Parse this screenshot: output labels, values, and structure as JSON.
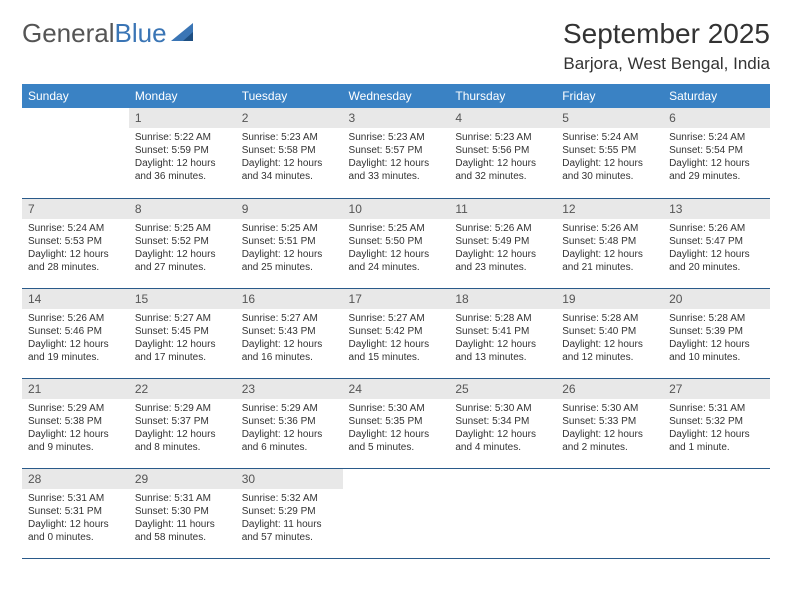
{
  "logo": {
    "text_part1": "General",
    "text_part2": "Blue"
  },
  "header": {
    "month_title": "September 2025",
    "location": "Barjora, West Bengal, India"
  },
  "colors": {
    "header_bg": "#3a82c4",
    "header_text": "#ffffff",
    "daynum_bg": "#e8e8e8",
    "row_border": "#2a5a8a",
    "logo_gray": "#555555",
    "logo_blue": "#3a75b5"
  },
  "weekdays": [
    "Sunday",
    "Monday",
    "Tuesday",
    "Wednesday",
    "Thursday",
    "Friday",
    "Saturday"
  ],
  "weeks": [
    [
      {
        "empty": true
      },
      {
        "day": "1",
        "sunrise": "Sunrise: 5:22 AM",
        "sunset": "Sunset: 5:59 PM",
        "daylight1": "Daylight: 12 hours",
        "daylight2": "and 36 minutes."
      },
      {
        "day": "2",
        "sunrise": "Sunrise: 5:23 AM",
        "sunset": "Sunset: 5:58 PM",
        "daylight1": "Daylight: 12 hours",
        "daylight2": "and 34 minutes."
      },
      {
        "day": "3",
        "sunrise": "Sunrise: 5:23 AM",
        "sunset": "Sunset: 5:57 PM",
        "daylight1": "Daylight: 12 hours",
        "daylight2": "and 33 minutes."
      },
      {
        "day": "4",
        "sunrise": "Sunrise: 5:23 AM",
        "sunset": "Sunset: 5:56 PM",
        "daylight1": "Daylight: 12 hours",
        "daylight2": "and 32 minutes."
      },
      {
        "day": "5",
        "sunrise": "Sunrise: 5:24 AM",
        "sunset": "Sunset: 5:55 PM",
        "daylight1": "Daylight: 12 hours",
        "daylight2": "and 30 minutes."
      },
      {
        "day": "6",
        "sunrise": "Sunrise: 5:24 AM",
        "sunset": "Sunset: 5:54 PM",
        "daylight1": "Daylight: 12 hours",
        "daylight2": "and 29 minutes."
      }
    ],
    [
      {
        "day": "7",
        "sunrise": "Sunrise: 5:24 AM",
        "sunset": "Sunset: 5:53 PM",
        "daylight1": "Daylight: 12 hours",
        "daylight2": "and 28 minutes."
      },
      {
        "day": "8",
        "sunrise": "Sunrise: 5:25 AM",
        "sunset": "Sunset: 5:52 PM",
        "daylight1": "Daylight: 12 hours",
        "daylight2": "and 27 minutes."
      },
      {
        "day": "9",
        "sunrise": "Sunrise: 5:25 AM",
        "sunset": "Sunset: 5:51 PM",
        "daylight1": "Daylight: 12 hours",
        "daylight2": "and 25 minutes."
      },
      {
        "day": "10",
        "sunrise": "Sunrise: 5:25 AM",
        "sunset": "Sunset: 5:50 PM",
        "daylight1": "Daylight: 12 hours",
        "daylight2": "and 24 minutes."
      },
      {
        "day": "11",
        "sunrise": "Sunrise: 5:26 AM",
        "sunset": "Sunset: 5:49 PM",
        "daylight1": "Daylight: 12 hours",
        "daylight2": "and 23 minutes."
      },
      {
        "day": "12",
        "sunrise": "Sunrise: 5:26 AM",
        "sunset": "Sunset: 5:48 PM",
        "daylight1": "Daylight: 12 hours",
        "daylight2": "and 21 minutes."
      },
      {
        "day": "13",
        "sunrise": "Sunrise: 5:26 AM",
        "sunset": "Sunset: 5:47 PM",
        "daylight1": "Daylight: 12 hours",
        "daylight2": "and 20 minutes."
      }
    ],
    [
      {
        "day": "14",
        "sunrise": "Sunrise: 5:26 AM",
        "sunset": "Sunset: 5:46 PM",
        "daylight1": "Daylight: 12 hours",
        "daylight2": "and 19 minutes."
      },
      {
        "day": "15",
        "sunrise": "Sunrise: 5:27 AM",
        "sunset": "Sunset: 5:45 PM",
        "daylight1": "Daylight: 12 hours",
        "daylight2": "and 17 minutes."
      },
      {
        "day": "16",
        "sunrise": "Sunrise: 5:27 AM",
        "sunset": "Sunset: 5:43 PM",
        "daylight1": "Daylight: 12 hours",
        "daylight2": "and 16 minutes."
      },
      {
        "day": "17",
        "sunrise": "Sunrise: 5:27 AM",
        "sunset": "Sunset: 5:42 PM",
        "daylight1": "Daylight: 12 hours",
        "daylight2": "and 15 minutes."
      },
      {
        "day": "18",
        "sunrise": "Sunrise: 5:28 AM",
        "sunset": "Sunset: 5:41 PM",
        "daylight1": "Daylight: 12 hours",
        "daylight2": "and 13 minutes."
      },
      {
        "day": "19",
        "sunrise": "Sunrise: 5:28 AM",
        "sunset": "Sunset: 5:40 PM",
        "daylight1": "Daylight: 12 hours",
        "daylight2": "and 12 minutes."
      },
      {
        "day": "20",
        "sunrise": "Sunrise: 5:28 AM",
        "sunset": "Sunset: 5:39 PM",
        "daylight1": "Daylight: 12 hours",
        "daylight2": "and 10 minutes."
      }
    ],
    [
      {
        "day": "21",
        "sunrise": "Sunrise: 5:29 AM",
        "sunset": "Sunset: 5:38 PM",
        "daylight1": "Daylight: 12 hours",
        "daylight2": "and 9 minutes."
      },
      {
        "day": "22",
        "sunrise": "Sunrise: 5:29 AM",
        "sunset": "Sunset: 5:37 PM",
        "daylight1": "Daylight: 12 hours",
        "daylight2": "and 8 minutes."
      },
      {
        "day": "23",
        "sunrise": "Sunrise: 5:29 AM",
        "sunset": "Sunset: 5:36 PM",
        "daylight1": "Daylight: 12 hours",
        "daylight2": "and 6 minutes."
      },
      {
        "day": "24",
        "sunrise": "Sunrise: 5:30 AM",
        "sunset": "Sunset: 5:35 PM",
        "daylight1": "Daylight: 12 hours",
        "daylight2": "and 5 minutes."
      },
      {
        "day": "25",
        "sunrise": "Sunrise: 5:30 AM",
        "sunset": "Sunset: 5:34 PM",
        "daylight1": "Daylight: 12 hours",
        "daylight2": "and 4 minutes."
      },
      {
        "day": "26",
        "sunrise": "Sunrise: 5:30 AM",
        "sunset": "Sunset: 5:33 PM",
        "daylight1": "Daylight: 12 hours",
        "daylight2": "and 2 minutes."
      },
      {
        "day": "27",
        "sunrise": "Sunrise: 5:31 AM",
        "sunset": "Sunset: 5:32 PM",
        "daylight1": "Daylight: 12 hours",
        "daylight2": "and 1 minute."
      }
    ],
    [
      {
        "day": "28",
        "sunrise": "Sunrise: 5:31 AM",
        "sunset": "Sunset: 5:31 PM",
        "daylight1": "Daylight: 12 hours",
        "daylight2": "and 0 minutes."
      },
      {
        "day": "29",
        "sunrise": "Sunrise: 5:31 AM",
        "sunset": "Sunset: 5:30 PM",
        "daylight1": "Daylight: 11 hours",
        "daylight2": "and 58 minutes."
      },
      {
        "day": "30",
        "sunrise": "Sunrise: 5:32 AM",
        "sunset": "Sunset: 5:29 PM",
        "daylight1": "Daylight: 11 hours",
        "daylight2": "and 57 minutes."
      },
      {
        "empty": true
      },
      {
        "empty": true
      },
      {
        "empty": true
      },
      {
        "empty": true
      }
    ]
  ]
}
